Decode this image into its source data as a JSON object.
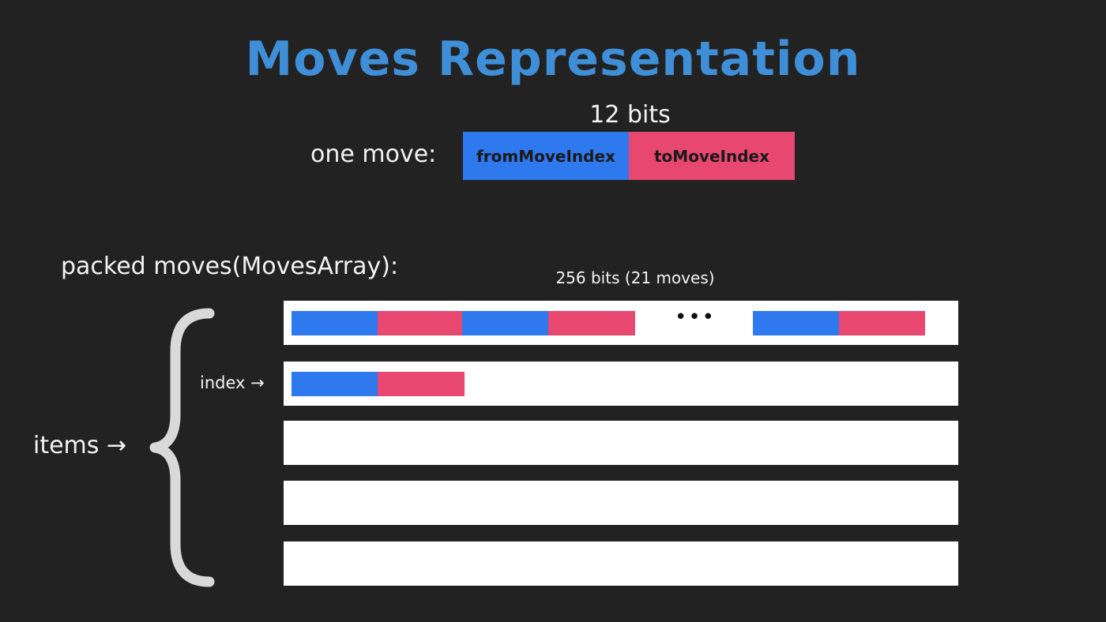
{
  "title": "Moves Representation",
  "one_move": {
    "bits_label": "12 bits",
    "label": "one move:",
    "from_label": "fromMoveIndex",
    "to_label": "toMoveIndex"
  },
  "packed": {
    "label": "packed moves(MovesArray):",
    "row_bits_label": "256 bits (21 moves)",
    "ellipsis": "•••",
    "index_label": "index →",
    "items_label": "items →"
  },
  "colors": {
    "background": "#222223",
    "title": "#3f8fd8",
    "from_move": "#2f79ee",
    "to_move": "#e84770",
    "row": "#ffffff",
    "brace": "#d9d9d9"
  }
}
